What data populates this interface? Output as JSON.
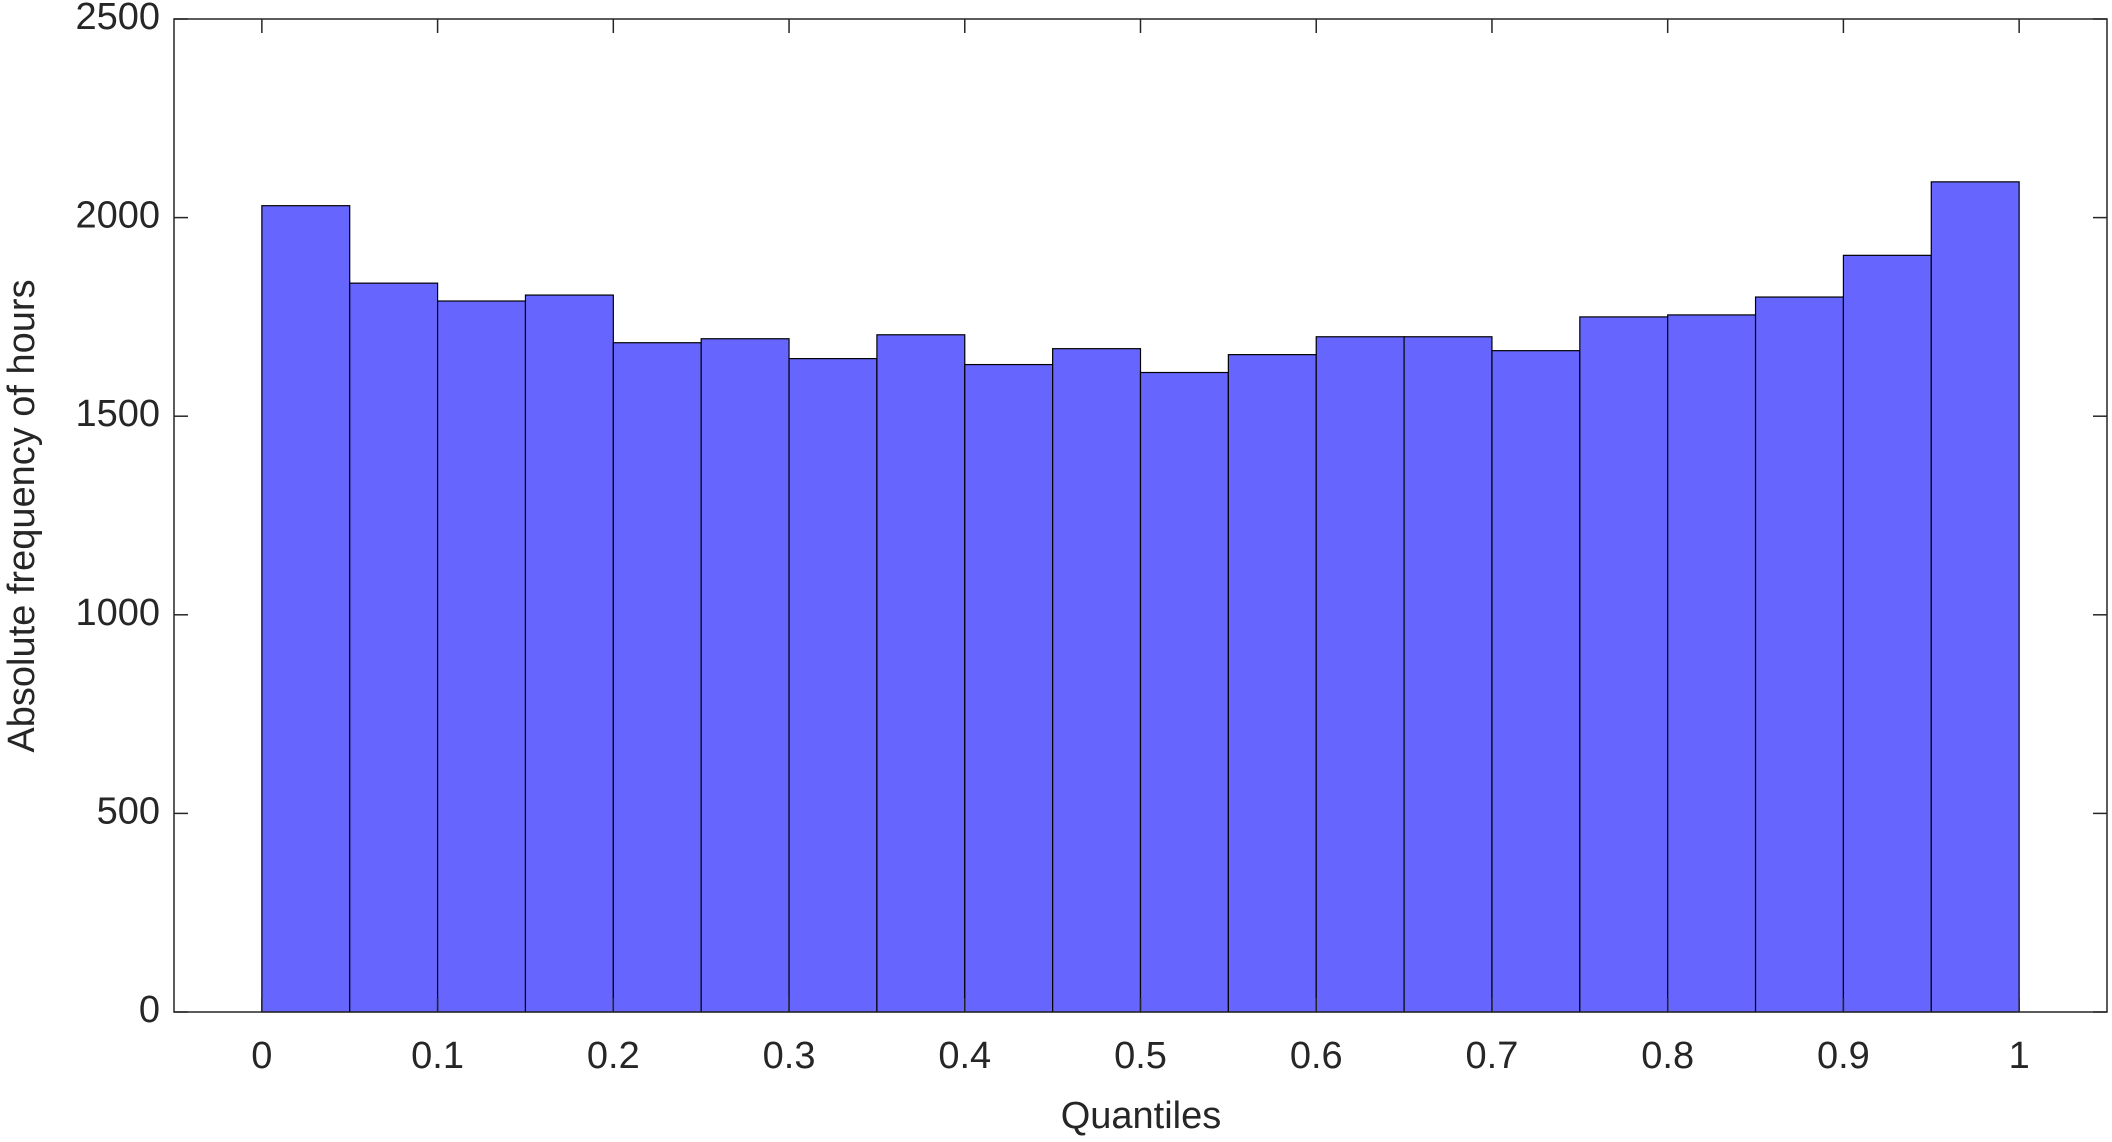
{
  "chart_data": {
    "type": "histogram",
    "xlabel": "Quantiles",
    "ylabel": "Absolute frequency of hours",
    "bins": [
      0,
      0.05,
      0.1,
      0.15,
      0.2,
      0.25,
      0.3,
      0.35,
      0.4,
      0.45,
      0.5,
      0.55,
      0.6,
      0.65,
      0.7,
      0.75,
      0.8,
      0.85,
      0.9,
      0.95,
      1
    ],
    "values": [
      2030,
      1835,
      1790,
      1805,
      1685,
      1695,
      1645,
      1705,
      1630,
      1670,
      1610,
      1655,
      1700,
      1700,
      1665,
      1750,
      1755,
      1800,
      1905,
      2090
    ],
    "color": "#6666ff",
    "xlim": [
      -0.05,
      1.05
    ],
    "ylim": [
      0,
      2500
    ],
    "xticks": [
      0,
      0.1,
      0.2,
      0.3,
      0.4,
      0.5,
      0.6,
      0.7,
      0.8,
      0.9,
      1
    ],
    "yticks": [
      0,
      500,
      1000,
      1500,
      2000,
      2500
    ]
  }
}
